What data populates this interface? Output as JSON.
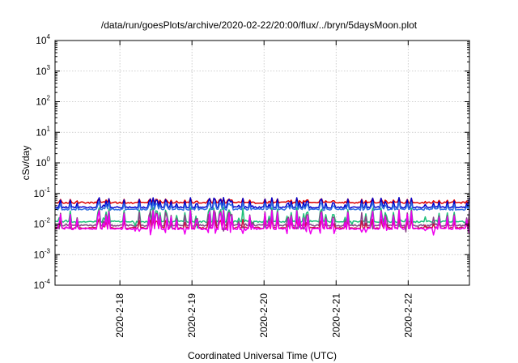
{
  "chart_data": {
    "type": "line",
    "title": "/data/run/goesPlots/archive/2020-02-22/20:00/flux/../bryn/5daysMoon.plot",
    "xlabel": "Coordinated Universal Time (UTC)",
    "ylabel": "cSv/day",
    "x_range_days": [
      17.1,
      22.85
    ],
    "x_ticks": [
      {
        "day": 18,
        "label": "2020-2-18"
      },
      {
        "day": 19,
        "label": "2020-2-19"
      },
      {
        "day": 20,
        "label": "2020-2-20"
      },
      {
        "day": 21,
        "label": "2020-2-21"
      },
      {
        "day": 22,
        "label": "2020-2-22"
      }
    ],
    "y_scale": "log",
    "ylim": [
      0.0001,
      10000
    ],
    "y_ticks": [
      {
        "value": 0.0001,
        "base": "10",
        "exp": "-4"
      },
      {
        "value": 0.001,
        "base": "10",
        "exp": "-3"
      },
      {
        "value": 0.01,
        "base": "10",
        "exp": "-2"
      },
      {
        "value": 0.1,
        "base": "10",
        "exp": "-1"
      },
      {
        "value": 1,
        "base": "10",
        "exp": "0"
      },
      {
        "value": 10,
        "base": "10",
        "exp": "1"
      },
      {
        "value": 100,
        "base": "10",
        "exp": "2"
      },
      {
        "value": 1000,
        "base": "10",
        "exp": "3"
      },
      {
        "value": 10000,
        "base": "10",
        "exp": "4"
      }
    ],
    "grid": true,
    "series": [
      {
        "color": "#dd0000",
        "base": 0.05,
        "spike_max": 0.085,
        "spiky": false
      },
      {
        "color": "#0000cc",
        "base": 0.035,
        "spike_max": 0.1,
        "spiky": false
      },
      {
        "color": "#2e6fe0",
        "base": 0.03,
        "spike_max": 0.07,
        "spiky": false
      },
      {
        "color": "#1fbf7a",
        "base": 0.012,
        "spike_max": 0.035,
        "spiky": true
      },
      {
        "color": "#884488",
        "base": 0.009,
        "spike_max": 0.03,
        "spiky": true
      },
      {
        "color": "#cc1144",
        "base": 0.0075,
        "spike_max": 0.02,
        "spiky": false
      },
      {
        "color": "#ee00ee",
        "base": 0.007,
        "spike_max": 0.028,
        "spiky": true
      }
    ]
  }
}
